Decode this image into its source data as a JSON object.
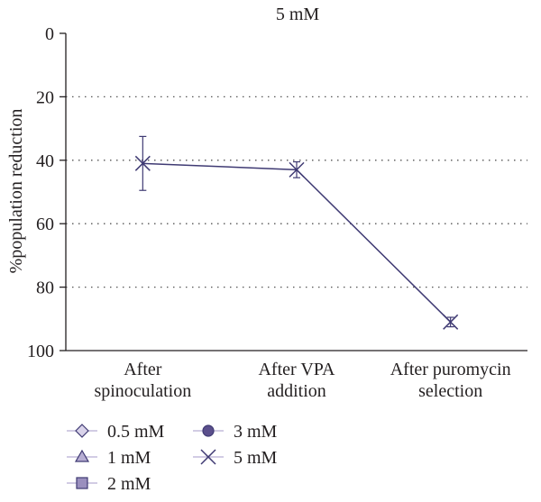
{
  "chart_data": {
    "type": "line",
    "title": "5 mM",
    "xlabel": "",
    "ylabel": "%population reduction",
    "y_axis_reversed": true,
    "ylim": [
      0,
      100
    ],
    "yticks": [
      0,
      20,
      40,
      60,
      80,
      100
    ],
    "grid": "horizontal dotted",
    "categories": [
      [
        "After",
        "spinoculation"
      ],
      [
        "After VPA",
        "addition"
      ],
      [
        "After puromycin",
        "selection"
      ]
    ],
    "series": [
      {
        "name": "5 mM",
        "marker": "x",
        "values": [
          41,
          43,
          91
        ],
        "error": [
          8.5,
          2.5,
          1.5
        ]
      }
    ],
    "legend": {
      "placement": "bottom-left",
      "entries": [
        {
          "label": "0.5 mM",
          "marker": "diamond"
        },
        {
          "label": "1 mM",
          "marker": "triangle"
        },
        {
          "label": "2 mM",
          "marker": "square"
        },
        {
          "label": "3 mM",
          "marker": "circle"
        },
        {
          "label": "5 mM",
          "marker": "x"
        }
      ]
    },
    "colors": {
      "series_line": "#3f3a73",
      "marker_fill": "#d9d3ea",
      "marker_fill_dark": "#5b4f8c",
      "axis": "#231f20",
      "grid": "#555555"
    }
  }
}
